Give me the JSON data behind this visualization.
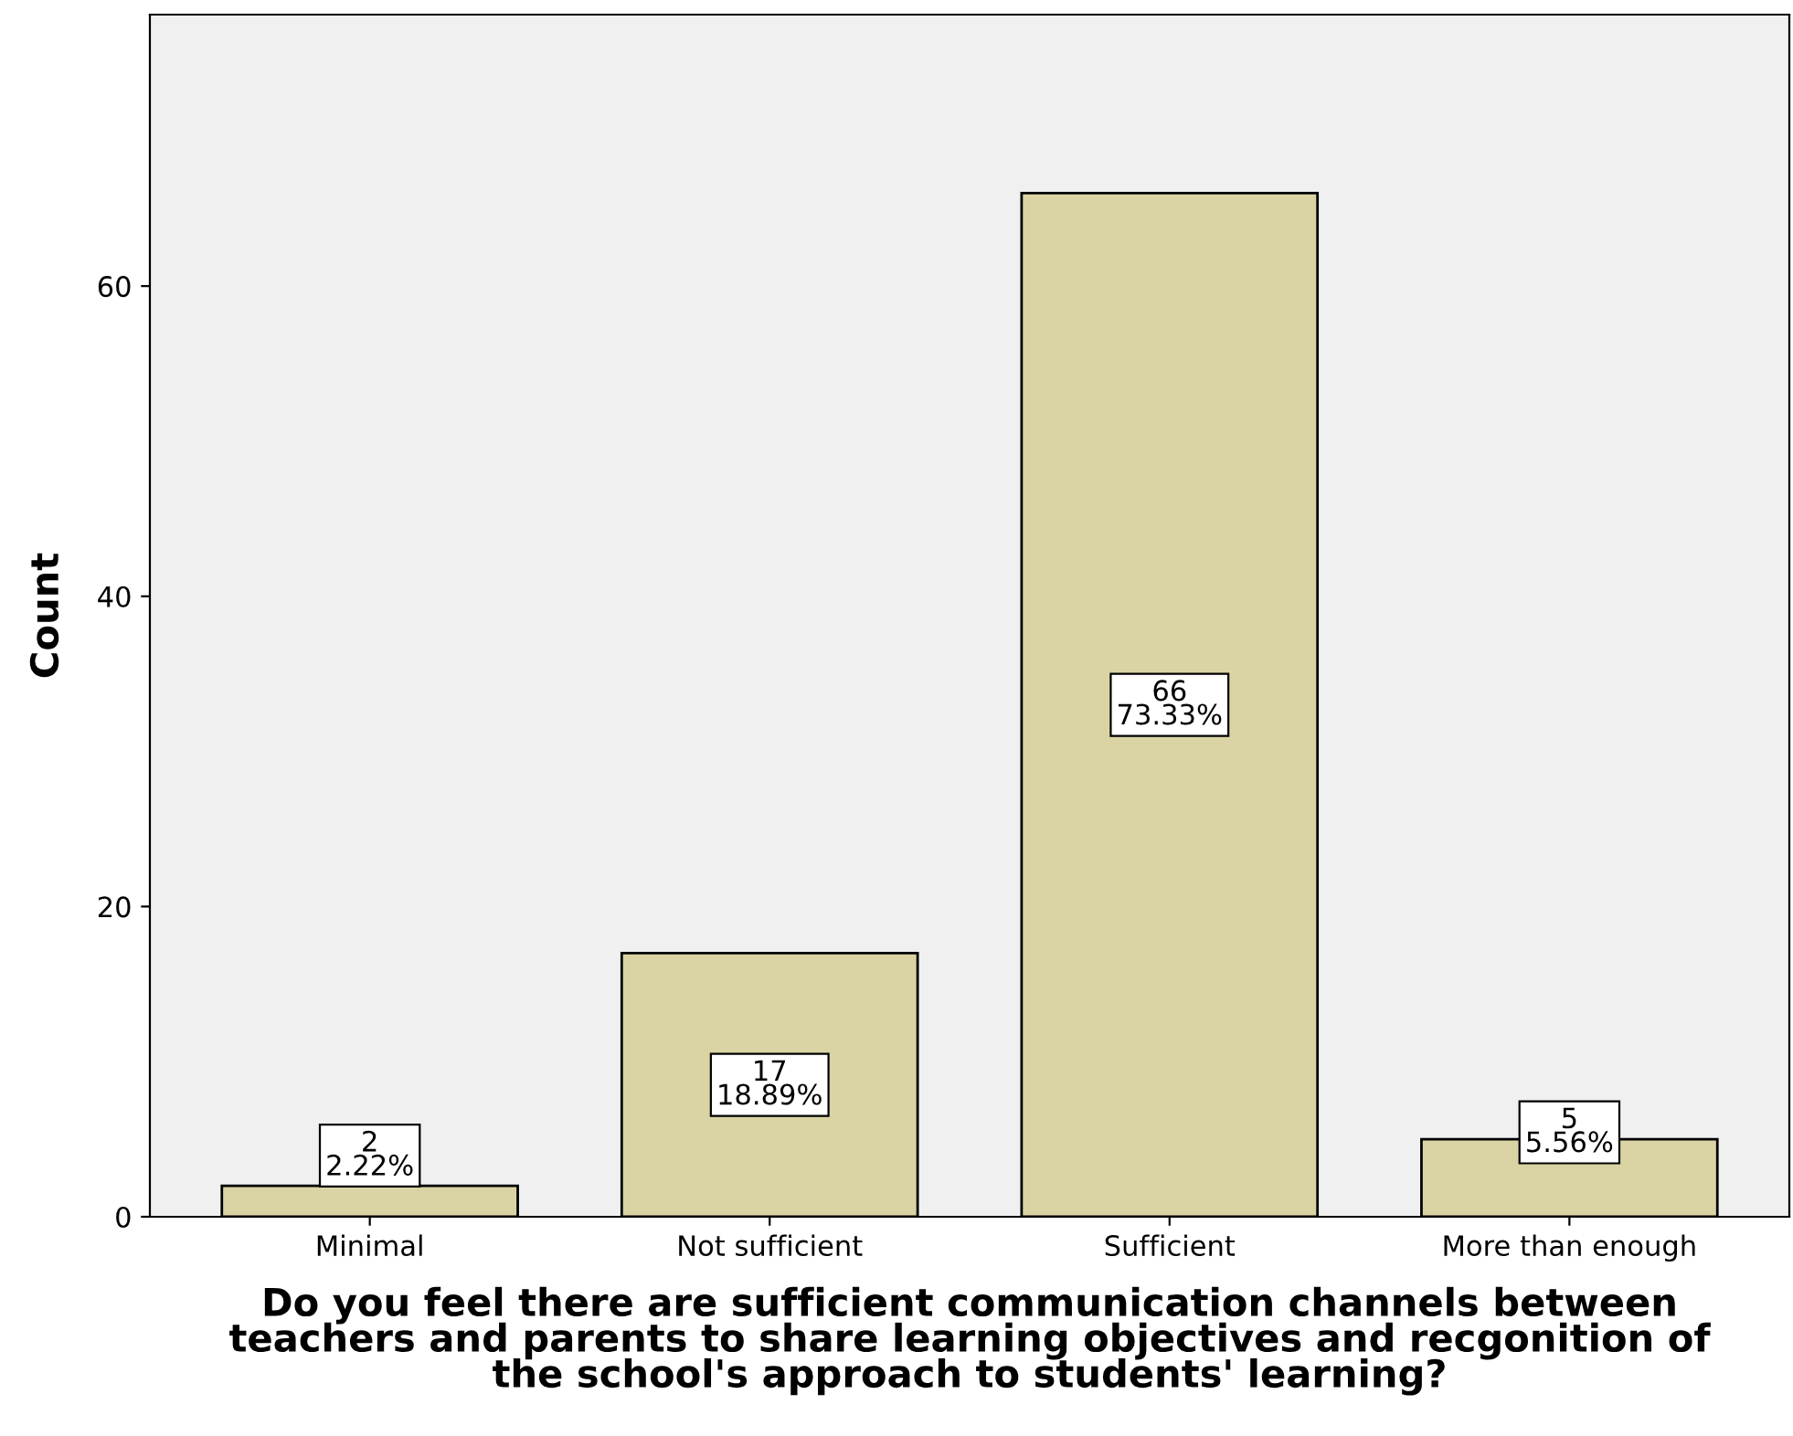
{
  "chart_data": {
    "type": "bar",
    "categories": [
      "Minimal",
      "Not sufficient",
      "Sufficient",
      "More than enough"
    ],
    "values": [
      2,
      17,
      66,
      5
    ],
    "value_labels": [
      "2\n2.22%",
      "17\n18.89%",
      "66\n73.33%",
      "5\n5.56%"
    ],
    "color": "#dad4a4",
    "ylabel": "Count",
    "xlabel": "Do you feel there are sufficient communication channels between\nteachers and parents to share learning objectives and recgonition of\nthe school's approach to students' learning?",
    "ylim": [
      0,
      77.5
    ],
    "yticks": [
      0,
      20,
      40,
      60
    ],
    "grid": false
  }
}
